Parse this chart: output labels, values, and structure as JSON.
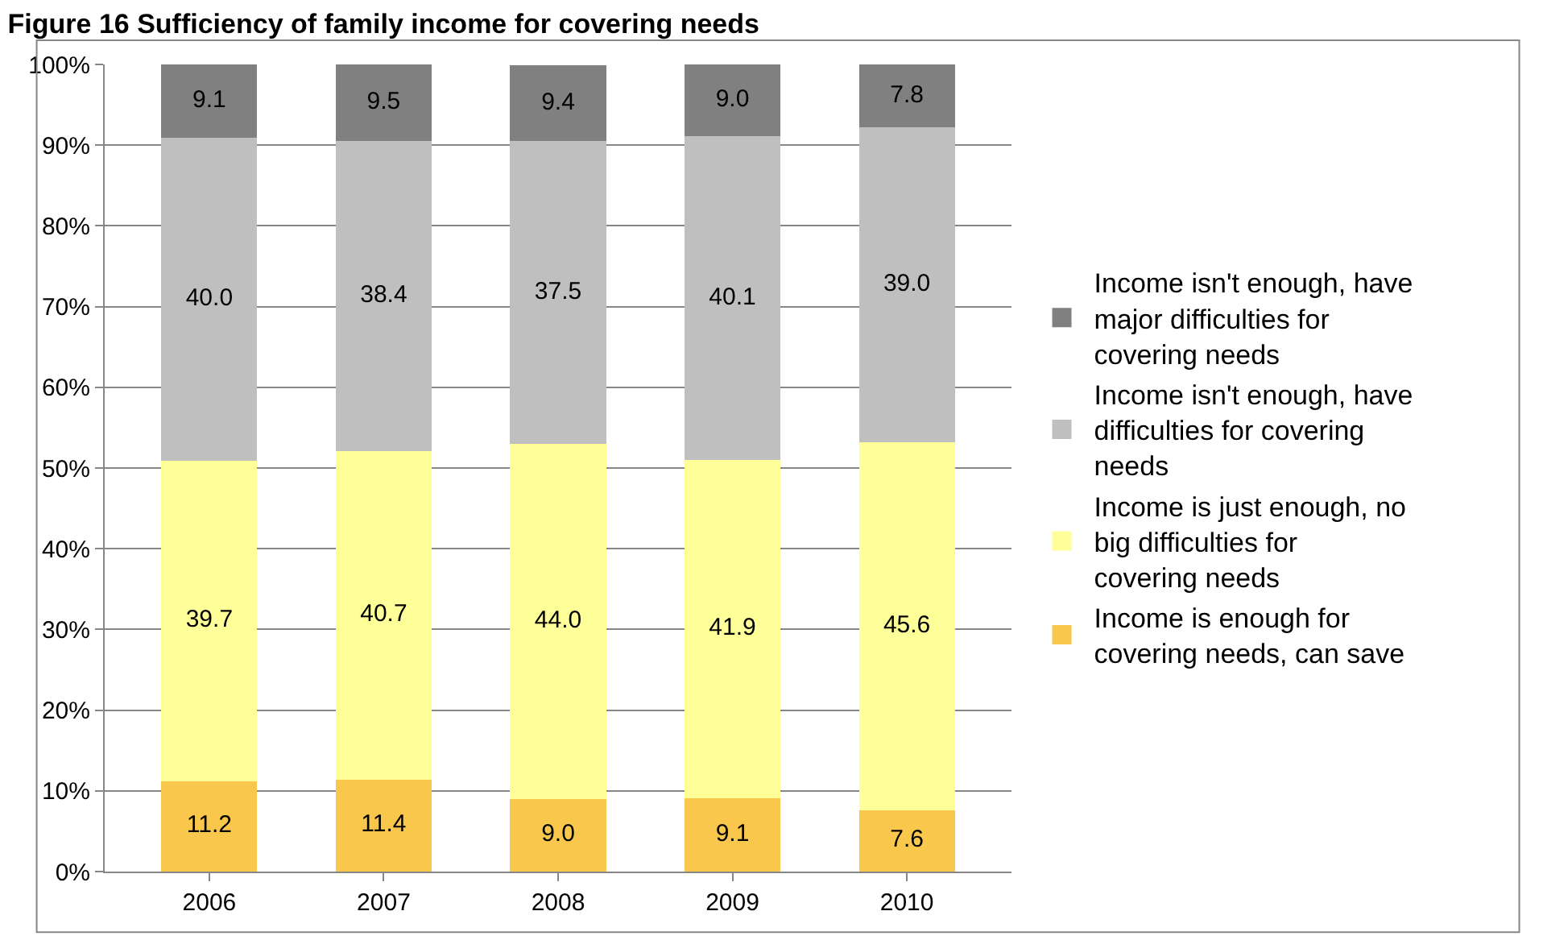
{
  "chart_data": {
    "type": "bar",
    "title": "Figure 16 Sufficiency of family income for covering needs",
    "stacked": true,
    "categories": [
      "2006",
      "2007",
      "2008",
      "2009",
      "2010"
    ],
    "series": [
      {
        "name": "Income is enough for covering needs, can save",
        "color": "#f9c74b",
        "values": [
          11.2,
          11.4,
          9.0,
          9.1,
          7.6
        ],
        "value_labels": [
          "11.2",
          "11.4",
          "9.0",
          "9.1",
          "7.6"
        ]
      },
      {
        "name": "Income is just enough, no big difficulties for covering needs",
        "color": "#ffff99",
        "values": [
          39.7,
          40.7,
          44.0,
          41.9,
          45.6
        ],
        "value_labels": [
          "39.7",
          "40.7",
          "44.0",
          "41.9",
          "45.6"
        ]
      },
      {
        "name": "Income isn't enough, have difficulties for covering needs",
        "color": "#bfbfbf",
        "values": [
          40.0,
          38.4,
          37.5,
          40.1,
          39.0
        ],
        "value_labels": [
          "40.0",
          "38.4",
          "37.5",
          "40.1",
          "39.0"
        ]
      },
      {
        "name": "Income isn't enough, have major difficulties for covering needs",
        "color": "#808080",
        "values": [
          9.1,
          9.5,
          9.4,
          9.0,
          7.8
        ],
        "value_labels": [
          "9.1",
          "9.5",
          "9.4",
          "9.0",
          "7.8"
        ]
      }
    ],
    "ylim": [
      0,
      100
    ],
    "yticks": [
      {
        "value": 0,
        "label": "0%"
      },
      {
        "value": 10,
        "label": "10%"
      },
      {
        "value": 20,
        "label": "20%"
      },
      {
        "value": 30,
        "label": "30%"
      },
      {
        "value": 40,
        "label": "40%"
      },
      {
        "value": 50,
        "label": "50%"
      },
      {
        "value": 60,
        "label": "60%"
      },
      {
        "value": 70,
        "label": "70%"
      },
      {
        "value": 80,
        "label": "80%"
      },
      {
        "value": 90,
        "label": "90%"
      },
      {
        "value": 100,
        "label": "100%"
      }
    ],
    "grid": "y",
    "legend": "right"
  }
}
